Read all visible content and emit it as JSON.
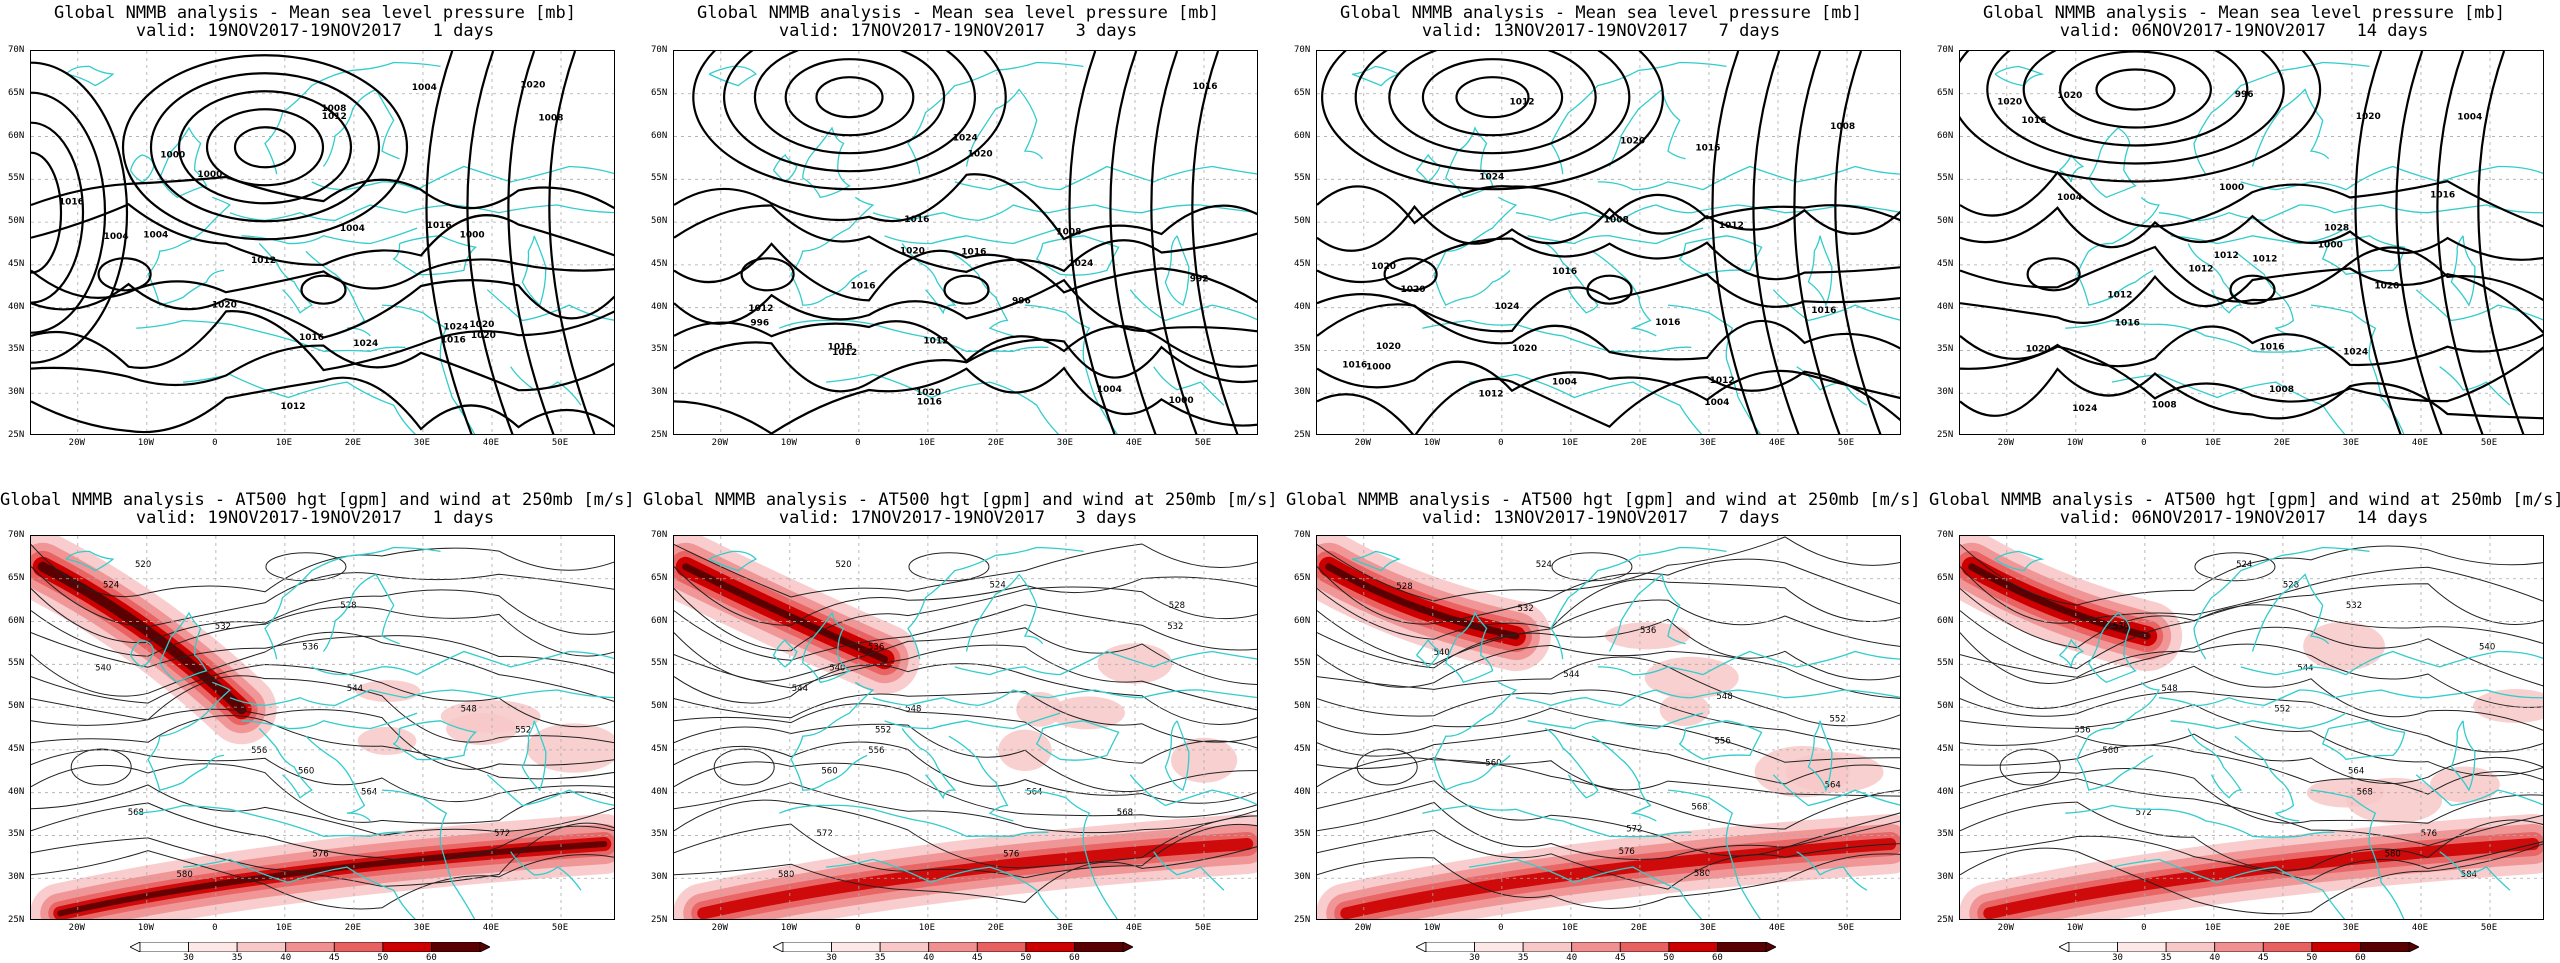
{
  "mslp_panels": [
    {
      "title": "Global NMMB analysis - Mean sea level pressure [mb]",
      "valid": "valid: 19NOV2017-19NOV2017   1 days"
    },
    {
      "title": "Global NMMB analysis - Mean sea level pressure [mb]",
      "valid": "valid: 17NOV2017-19NOV2017   3 days"
    },
    {
      "title": "Global NMMB analysis - Mean sea level pressure [mb]",
      "valid": "valid: 13NOV2017-19NOV2017   7 days"
    },
    {
      "title": "Global NMMB analysis - Mean sea level pressure [mb]",
      "valid": "valid: 06NOV2017-19NOV2017   14 days"
    }
  ],
  "z500_panels": [
    {
      "title": "Global NMMB analysis - AT500 hgt [gpm] and wind at 250mb [m/s]",
      "valid": "valid: 19NOV2017-19NOV2017   1 days"
    },
    {
      "title": "Global NMMB analysis - AT500 hgt [gpm] and wind at 250mb [m/s]",
      "valid": "valid: 17NOV2017-19NOV2017   3 days"
    },
    {
      "title": "Global NMMB analysis - AT500 hgt [gpm] and wind at 250mb [m/s]",
      "valid": "valid: 13NOV2017-19NOV2017   7 days"
    },
    {
      "title": "Global NMMB analysis - AT500 hgt [gpm] and wind at 250mb [m/s]",
      "valid": "valid: 06NOV2017-19NOV2017   14 days"
    }
  ],
  "lat_labels": [
    "70N",
    "65N",
    "60N",
    "55N",
    "50N",
    "45N",
    "40N",
    "35N",
    "30N",
    "25N"
  ],
  "lon_labels": [
    "20W",
    "10W",
    "0",
    "10E",
    "20E",
    "30E",
    "40E",
    "50E"
  ],
  "colorbar_ticks": [
    "30",
    "35",
    "40",
    "45",
    "50",
    "60"
  ],
  "mslp_contour_labels": [
    [
      "1004",
      "1000",
      "1004",
      "1004",
      "1008",
      "1000",
      "1000",
      "1004",
      "1008",
      "1024",
      "1012",
      "1016",
      "1020",
      "1024",
      "1020",
      "1020",
      "1016",
      "1012",
      "1020",
      "1016",
      "1016",
      "1012"
    ],
    [
      "996",
      "992",
      "996",
      "1000",
      "1004",
      "1008",
      "1012",
      "1016",
      "1020",
      "1024",
      "1024",
      "1020",
      "1012",
      "1016",
      "1020",
      "1012",
      "1016",
      "1016",
      "1016",
      "1016"
    ],
    [
      "1000",
      "1004",
      "1008",
      "1012",
      "1016",
      "1020",
      "1004",
      "1008",
      "1012",
      "1016",
      "1020",
      "1024",
      "1020",
      "1024",
      "1020",
      "1012",
      "1016",
      "1020",
      "1016",
      "1012",
      "1016"
    ],
    [
      "996",
      "1000",
      "1004",
      "1008",
      "1012",
      "1016",
      "1020",
      "1000",
      "1004",
      "1008",
      "1012",
      "1016",
      "1024",
      "1020",
      "1028",
      "1024",
      "1016",
      "1012",
      "1020",
      "1016",
      "1020",
      "1020",
      "1012"
    ]
  ],
  "z500_contour_labels": [
    [
      "520",
      "524",
      "528",
      "532",
      "536",
      "540",
      "544",
      "548",
      "552",
      "556",
      "560",
      "564",
      "568",
      "572",
      "576",
      "580"
    ],
    [
      "520",
      "524",
      "528",
      "532",
      "536",
      "540",
      "544",
      "548",
      "552",
      "556",
      "560",
      "564",
      "568",
      "572",
      "576",
      "580"
    ],
    [
      "524",
      "528",
      "532",
      "536",
      "540",
      "544",
      "548",
      "552",
      "556",
      "560",
      "564",
      "568",
      "572",
      "576",
      "580"
    ],
    [
      "524",
      "528",
      "532",
      "536",
      "540",
      "544",
      "548",
      "552",
      "556",
      "560",
      "564",
      "568",
      "572",
      "576",
      "580",
      "584"
    ]
  ],
  "colors": {
    "coast": "#33cccc",
    "contour": "#000000",
    "grid": "#aaaaaa",
    "wind_light": "#f8c8c8",
    "wind_mid": "#e86060",
    "wind_strong": "#cc0000",
    "wind_max": "#5a0000"
  }
}
